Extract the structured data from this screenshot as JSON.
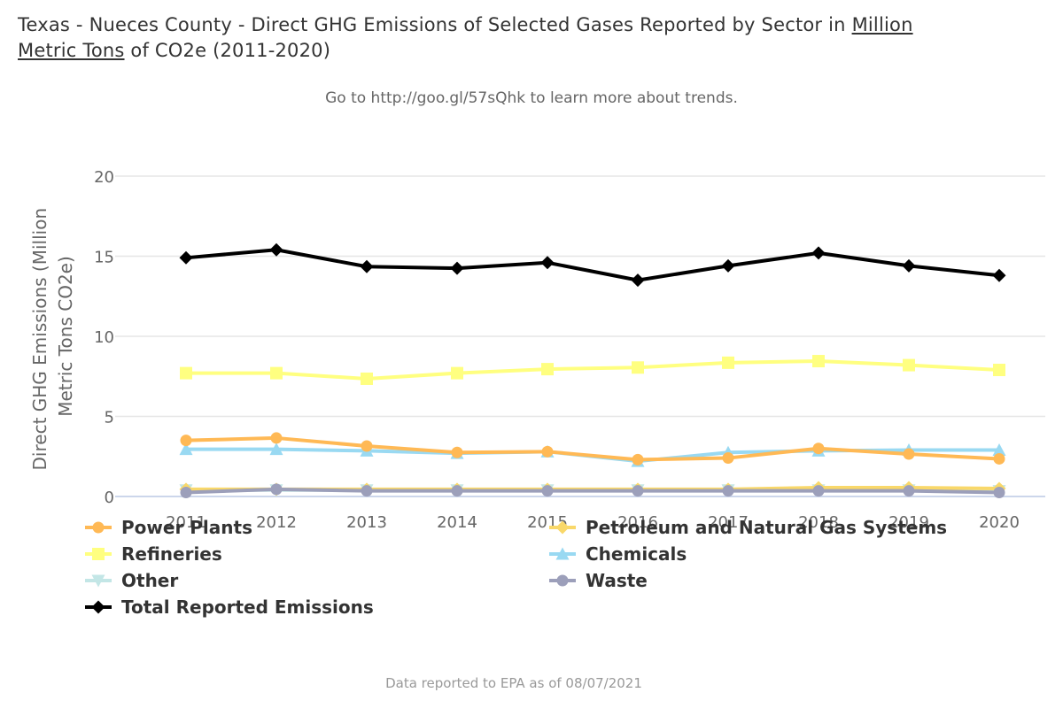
{
  "header": {
    "title_part1": "Texas - Nueces County - Direct GHG Emissions of Selected Gases Reported by Sector in ",
    "title_link1": "Million",
    "title_link2": "Metric Tons",
    "title_part2": " of CO2e (2011-2020)",
    "subtitle": "Go to http://goo.gl/57sQhk to learn more about trends."
  },
  "footer": {
    "credit": "Data reported to EPA as of 08/07/2021"
  },
  "chart_data": {
    "type": "line",
    "title": "Texas - Nueces County - Direct GHG Emissions of Selected Gases Reported by Sector in Million Metric Tons of CO2e (2011-2020)",
    "subtitle": "Go to http://goo.gl/57sQhk to learn more about trends.",
    "xlabel": "",
    "ylabel_lines": [
      "Direct GHG Emissions (Million",
      "Metric Tons CO2e)"
    ],
    "ylabel": "Direct GHG Emissions (Million Metric Tons CO2e)",
    "x": [
      "2011",
      "2012",
      "2013",
      "2014",
      "2015",
      "2016",
      "2017",
      "2018",
      "2019",
      "2020"
    ],
    "ylim": [
      0,
      20
    ],
    "yticks": [
      0,
      5,
      10,
      15,
      20
    ],
    "grid": true,
    "legend_position": "bottom",
    "series": [
      {
        "name": "Power Plants",
        "color": "#FFB955",
        "marker": "circle",
        "values": [
          3.5,
          3.65,
          3.15,
          2.75,
          2.8,
          2.3,
          2.4,
          3.0,
          2.65,
          2.35
        ]
      },
      {
        "name": "Petroleum and Natural Gas Systems",
        "color": "#F9D86A",
        "marker": "diamond",
        "values": [
          0.45,
          0.45,
          0.45,
          0.45,
          0.45,
          0.45,
          0.45,
          0.55,
          0.55,
          0.5
        ]
      },
      {
        "name": "Refineries",
        "color": "#FFFF80",
        "marker": "square",
        "values": [
          7.7,
          7.7,
          7.35,
          7.7,
          7.95,
          8.05,
          8.35,
          8.45,
          8.2,
          7.9
        ]
      },
      {
        "name": "Chemicals",
        "color": "#99D9F2",
        "marker": "triangle",
        "values": [
          2.95,
          2.95,
          2.85,
          2.7,
          2.8,
          2.2,
          2.75,
          2.85,
          2.9,
          2.9
        ]
      },
      {
        "name": "Other",
        "color": "#C3E6E6",
        "marker": "triangle-down",
        "values": [
          0.4,
          0.4,
          0.4,
          0.4,
          0.4,
          0.4,
          0.4,
          0.4,
          0.4,
          0.35
        ]
      },
      {
        "name": "Waste",
        "color": "#9C9FBA",
        "marker": "circle",
        "values": [
          0.25,
          0.45,
          0.35,
          0.35,
          0.35,
          0.35,
          0.35,
          0.35,
          0.35,
          0.25
        ]
      },
      {
        "name": "Total Reported Emissions",
        "color": "#000000",
        "marker": "diamond",
        "values": [
          14.9,
          15.4,
          14.35,
          14.25,
          14.6,
          13.5,
          14.4,
          15.2,
          14.4,
          13.8
        ]
      }
    ]
  }
}
